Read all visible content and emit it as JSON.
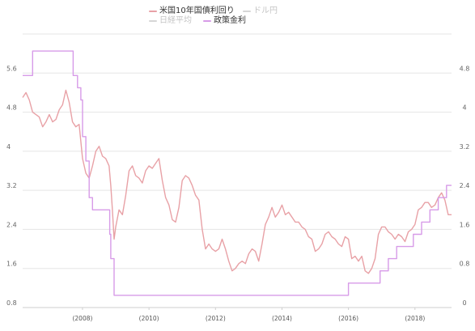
{
  "chart_data": {
    "type": "line",
    "legend": [
      {
        "name": "米国10年国債利回り",
        "color": "#e8a1a6",
        "active": true
      },
      {
        "name": "ドル円",
        "color": "#cfcfcf",
        "active": false
      },
      {
        "name": "日経平均",
        "color": "#cfcfcf",
        "active": false
      },
      {
        "name": "政策金利",
        "color": "#d79be8",
        "active": true
      }
    ],
    "x_ticks": [
      "(2008)",
      "(2010)",
      "(2012)",
      "(2014)",
      "(2016)",
      "(2018)"
    ],
    "x_tick_years": [
      2008,
      2010,
      2012,
      2014,
      2016,
      2018
    ],
    "xlim": [
      2006.2,
      2019.1
    ],
    "left_axis": {
      "ticks": [
        "0.8",
        "1.6",
        "2.4",
        "3.2",
        "4",
        "4.8",
        "5.6"
      ],
      "lim": [
        0.8,
        6.4
      ]
    },
    "right_axis": {
      "ticks": [
        "0",
        "0.8",
        "1.6",
        "2.4",
        "3.2",
        "4",
        "4.8"
      ],
      "lim": [
        0,
        5.6
      ]
    },
    "grid": true,
    "series": [
      {
        "name": "米国10年国債利回り",
        "axis": "left",
        "color": "#e8a1a6",
        "points": [
          [
            2006.2,
            5.1
          ],
          [
            2006.3,
            5.2
          ],
          [
            2006.4,
            5.05
          ],
          [
            2006.5,
            4.8
          ],
          [
            2006.6,
            4.75
          ],
          [
            2006.7,
            4.7
          ],
          [
            2006.8,
            4.5
          ],
          [
            2006.9,
            4.6
          ],
          [
            2007.0,
            4.75
          ],
          [
            2007.1,
            4.6
          ],
          [
            2007.2,
            4.65
          ],
          [
            2007.3,
            4.85
          ],
          [
            2007.4,
            4.95
          ],
          [
            2007.5,
            5.25
          ],
          [
            2007.6,
            5.0
          ],
          [
            2007.7,
            4.6
          ],
          [
            2007.8,
            4.5
          ],
          [
            2007.9,
            4.55
          ],
          [
            2007.95,
            4.2
          ],
          [
            2008.0,
            3.85
          ],
          [
            2008.1,
            3.55
          ],
          [
            2008.2,
            3.45
          ],
          [
            2008.3,
            3.7
          ],
          [
            2008.4,
            4.0
          ],
          [
            2008.5,
            4.1
          ],
          [
            2008.6,
            3.9
          ],
          [
            2008.7,
            3.85
          ],
          [
            2008.8,
            3.7
          ],
          [
            2008.85,
            3.3
          ],
          [
            2008.9,
            2.8
          ],
          [
            2008.95,
            2.2
          ],
          [
            2009.0,
            2.45
          ],
          [
            2009.1,
            2.8
          ],
          [
            2009.2,
            2.7
          ],
          [
            2009.3,
            3.1
          ],
          [
            2009.4,
            3.6
          ],
          [
            2009.5,
            3.7
          ],
          [
            2009.6,
            3.5
          ],
          [
            2009.7,
            3.45
          ],
          [
            2009.8,
            3.35
          ],
          [
            2009.9,
            3.6
          ],
          [
            2010.0,
            3.7
          ],
          [
            2010.1,
            3.65
          ],
          [
            2010.2,
            3.75
          ],
          [
            2010.3,
            3.85
          ],
          [
            2010.4,
            3.4
          ],
          [
            2010.5,
            3.05
          ],
          [
            2010.6,
            2.9
          ],
          [
            2010.7,
            2.6
          ],
          [
            2010.8,
            2.55
          ],
          [
            2010.9,
            2.85
          ],
          [
            2011.0,
            3.4
          ],
          [
            2011.1,
            3.5
          ],
          [
            2011.2,
            3.45
          ],
          [
            2011.3,
            3.3
          ],
          [
            2011.4,
            3.1
          ],
          [
            2011.5,
            3.0
          ],
          [
            2011.6,
            2.4
          ],
          [
            2011.7,
            2.0
          ],
          [
            2011.8,
            2.1
          ],
          [
            2011.9,
            2.0
          ],
          [
            2012.0,
            1.95
          ],
          [
            2012.1,
            2.0
          ],
          [
            2012.2,
            2.2
          ],
          [
            2012.3,
            2.0
          ],
          [
            2012.4,
            1.75
          ],
          [
            2012.5,
            1.55
          ],
          [
            2012.6,
            1.6
          ],
          [
            2012.7,
            1.7
          ],
          [
            2012.8,
            1.75
          ],
          [
            2012.9,
            1.7
          ],
          [
            2013.0,
            1.9
          ],
          [
            2013.1,
            2.0
          ],
          [
            2013.2,
            1.95
          ],
          [
            2013.3,
            1.75
          ],
          [
            2013.4,
            2.1
          ],
          [
            2013.5,
            2.5
          ],
          [
            2013.6,
            2.65
          ],
          [
            2013.7,
            2.85
          ],
          [
            2013.8,
            2.65
          ],
          [
            2013.9,
            2.75
          ],
          [
            2014.0,
            2.9
          ],
          [
            2014.1,
            2.7
          ],
          [
            2014.2,
            2.75
          ],
          [
            2014.3,
            2.65
          ],
          [
            2014.4,
            2.55
          ],
          [
            2014.5,
            2.55
          ],
          [
            2014.6,
            2.45
          ],
          [
            2014.7,
            2.4
          ],
          [
            2014.8,
            2.25
          ],
          [
            2014.9,
            2.2
          ],
          [
            2015.0,
            1.95
          ],
          [
            2015.1,
            2.0
          ],
          [
            2015.2,
            2.1
          ],
          [
            2015.3,
            2.3
          ],
          [
            2015.4,
            2.35
          ],
          [
            2015.5,
            2.25
          ],
          [
            2015.6,
            2.2
          ],
          [
            2015.7,
            2.1
          ],
          [
            2015.8,
            2.05
          ],
          [
            2015.9,
            2.25
          ],
          [
            2016.0,
            2.2
          ],
          [
            2016.1,
            1.8
          ],
          [
            2016.2,
            1.85
          ],
          [
            2016.3,
            1.75
          ],
          [
            2016.4,
            1.85
          ],
          [
            2016.5,
            1.55
          ],
          [
            2016.6,
            1.5
          ],
          [
            2016.7,
            1.6
          ],
          [
            2016.8,
            1.8
          ],
          [
            2016.9,
            2.3
          ],
          [
            2017.0,
            2.45
          ],
          [
            2017.1,
            2.45
          ],
          [
            2017.2,
            2.35
          ],
          [
            2017.3,
            2.3
          ],
          [
            2017.4,
            2.2
          ],
          [
            2017.5,
            2.3
          ],
          [
            2017.6,
            2.25
          ],
          [
            2017.7,
            2.15
          ],
          [
            2017.8,
            2.35
          ],
          [
            2017.9,
            2.4
          ],
          [
            2018.0,
            2.5
          ],
          [
            2018.1,
            2.8
          ],
          [
            2018.2,
            2.85
          ],
          [
            2018.3,
            2.95
          ],
          [
            2018.4,
            2.95
          ],
          [
            2018.5,
            2.85
          ],
          [
            2018.6,
            2.9
          ],
          [
            2018.7,
            3.05
          ],
          [
            2018.8,
            3.15
          ],
          [
            2018.9,
            3.0
          ],
          [
            2019.0,
            2.7
          ],
          [
            2019.1,
            2.7
          ]
        ]
      },
      {
        "name": "政策金利",
        "axis": "right",
        "color": "#d79be8",
        "points": [
          [
            2006.2,
            4.75
          ],
          [
            2006.5,
            5.25
          ],
          [
            2007.7,
            5.25
          ],
          [
            2007.72,
            4.75
          ],
          [
            2007.85,
            4.5
          ],
          [
            2007.95,
            4.25
          ],
          [
            2008.0,
            3.5
          ],
          [
            2008.1,
            3.0
          ],
          [
            2008.2,
            2.25
          ],
          [
            2008.3,
            2.0
          ],
          [
            2008.8,
            2.0
          ],
          [
            2008.82,
            1.5
          ],
          [
            2008.85,
            1.0
          ],
          [
            2008.95,
            0.25
          ],
          [
            2015.95,
            0.25
          ],
          [
            2016.0,
            0.5
          ],
          [
            2016.95,
            0.75
          ],
          [
            2017.2,
            1.0
          ],
          [
            2017.45,
            1.25
          ],
          [
            2017.95,
            1.5
          ],
          [
            2018.2,
            1.75
          ],
          [
            2018.45,
            2.0
          ],
          [
            2018.7,
            2.25
          ],
          [
            2018.95,
            2.5
          ],
          [
            2019.1,
            2.5
          ]
        ]
      }
    ]
  }
}
